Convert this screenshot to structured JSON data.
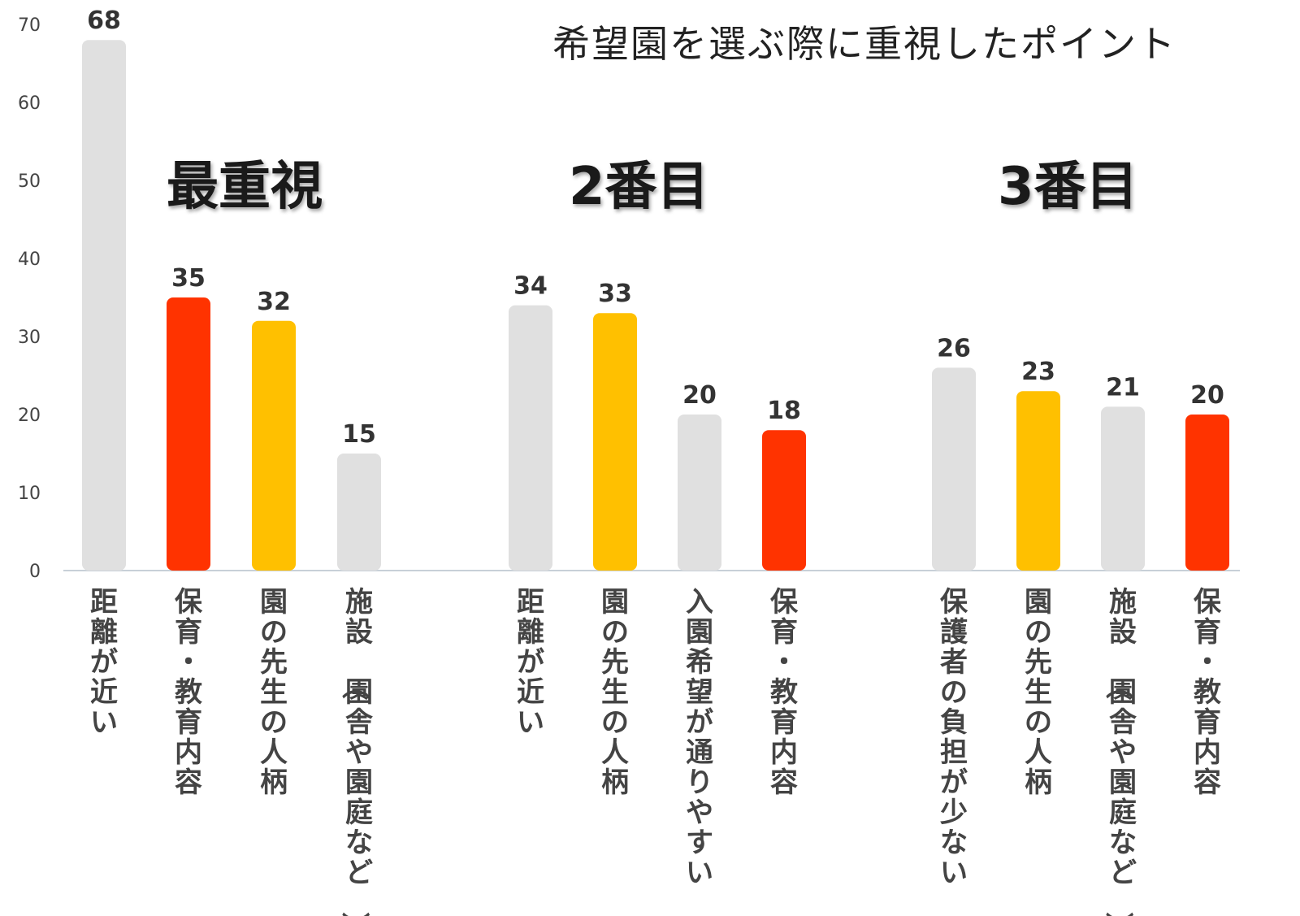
{
  "chart_data": {
    "type": "bar",
    "title": "希望園を選ぶ際に重視したポイント",
    "xlabel": "",
    "ylabel": "",
    "ylim": [
      0,
      70
    ],
    "yticks": [
      "0",
      "10",
      "20",
      "30",
      "40",
      "50",
      "60",
      "70"
    ],
    "grid": false,
    "groups": [
      {
        "label": "最重視",
        "categories": [
          "距離が近い",
          "保育・教育内容",
          "園の先生の人柄",
          "施設（園舎や園庭など）"
        ],
        "values": [
          68,
          35,
          32,
          15
        ],
        "colors": [
          "#e0e0e0",
          "#ff3300",
          "#ffc000",
          "#e0e0e0"
        ]
      },
      {
        "label": "2番目",
        "categories": [
          "距離が近い",
          "園の先生の人柄",
          "入園希望が通りやすい",
          "保育・教育内容"
        ],
        "values": [
          34,
          33,
          20,
          18
        ],
        "colors": [
          "#e0e0e0",
          "#ffc000",
          "#e0e0e0",
          "#ff3300"
        ]
      },
      {
        "label": "3番目",
        "categories": [
          "保護者の負担が少ない",
          "園の先生の人柄",
          "施設（園舎や園庭など）",
          "保育・教育内容"
        ],
        "values": [
          26,
          23,
          21,
          20
        ],
        "colors": [
          "#e0e0e0",
          "#ffc000",
          "#e0e0e0",
          "#ff3300"
        ]
      }
    ]
  }
}
